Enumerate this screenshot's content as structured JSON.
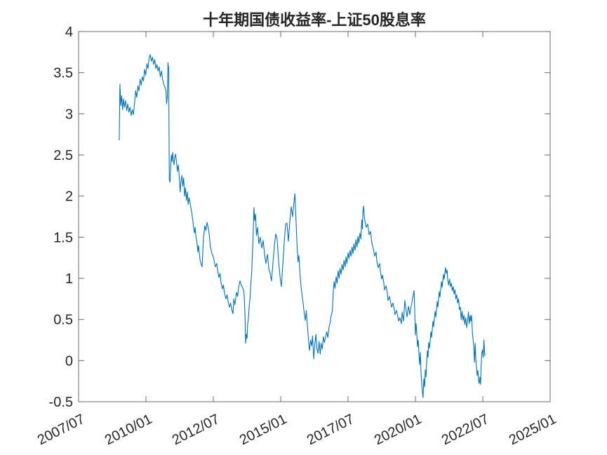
{
  "chart_data": {
    "type": "line",
    "title": "十年期国债收益率-上证50股息率",
    "legend": "none",
    "grid": false,
    "box": true,
    "tick_direction": "in",
    "colors": {
      "line": "#0072BD",
      "axis": "#6a6a6a",
      "text": "#262626",
      "background": "#ffffff"
    },
    "x_axis": {
      "unit": "months since 2007/07",
      "min": 0,
      "max": 210,
      "tick_values": [
        0,
        30,
        60,
        90,
        120,
        150,
        180,
        210
      ],
      "tick_labels": [
        "2007/07",
        "2010/01",
        "2012/07",
        "2015/01",
        "2017/07",
        "2020/01",
        "2022/07",
        "2025/01"
      ],
      "label_rotation_deg": -27
    },
    "y_axis": {
      "min": -0.5,
      "max": 4,
      "tick_values": [
        4,
        3.5,
        3,
        2.5,
        2,
        1.5,
        1,
        0.5,
        0,
        -0.5
      ],
      "tick_labels": [
        "4",
        "3.5",
        "3",
        "2.5",
        "2",
        "1.5",
        "1",
        "0.5",
        "0",
        "-0.5"
      ]
    },
    "points": [
      [
        18.1,
        2.68
      ],
      [
        18.4,
        3.36
      ],
      [
        18.8,
        3.1
      ],
      [
        19.2,
        3.22
      ],
      [
        19.6,
        3.05
      ],
      [
        20,
        3.18
      ],
      [
        20.4,
        3.08
      ],
      [
        20.9,
        3.16
      ],
      [
        21.4,
        3.04
      ],
      [
        21.9,
        3.12
      ],
      [
        22.4,
        3.02
      ],
      [
        22.9,
        3.08
      ],
      [
        23.4,
        2.98
      ],
      [
        23.9,
        3.05
      ],
      [
        24.4,
        2.99
      ],
      [
        25,
        3.15
      ],
      [
        25.4,
        3.28
      ],
      [
        25.9,
        3.2
      ],
      [
        26.4,
        3.34
      ],
      [
        26.9,
        3.28
      ],
      [
        27.4,
        3.42
      ],
      [
        27.9,
        3.35
      ],
      [
        28.4,
        3.45
      ],
      [
        28.9,
        3.4
      ],
      [
        29.4,
        3.54
      ],
      [
        29.9,
        3.47
      ],
      [
        30.4,
        3.61
      ],
      [
        30.9,
        3.55
      ],
      [
        31.4,
        3.68
      ],
      [
        31.9,
        3.72
      ],
      [
        32.4,
        3.64
      ],
      [
        32.9,
        3.69
      ],
      [
        33.4,
        3.6
      ],
      [
        33.9,
        3.66
      ],
      [
        34.4,
        3.55
      ],
      [
        34.9,
        3.6
      ],
      [
        35.4,
        3.52
      ],
      [
        35.9,
        3.57
      ],
      [
        36.4,
        3.45
      ],
      [
        36.9,
        3.52
      ],
      [
        37.4,
        3.42
      ],
      [
        37.9,
        3.36
      ],
      [
        38.4,
        3.33
      ],
      [
        38.9,
        3.28
      ],
      [
        39.2,
        3.12
      ],
      [
        39.5,
        3.2
      ],
      [
        39.8,
        3.62
      ],
      [
        40.1,
        3.55
      ],
      [
        40.4,
        2.2
      ],
      [
        40.7,
        2.17
      ],
      [
        41,
        2.35
      ],
      [
        41.3,
        2.5
      ],
      [
        41.6,
        2.42
      ],
      [
        41.9,
        2.53
      ],
      [
        42.2,
        2.45
      ],
      [
        42.5,
        2.38
      ],
      [
        42.9,
        2.48
      ],
      [
        43.2,
        2.51
      ],
      [
        43.6,
        2.42
      ],
      [
        44,
        2.3
      ],
      [
        44.4,
        2.38
      ],
      [
        44.8,
        2.25
      ],
      [
        45.2,
        2.05
      ],
      [
        45.6,
        2.18
      ],
      [
        46,
        2.25
      ],
      [
        46.4,
        2.12
      ],
      [
        46.8,
        2.22
      ],
      [
        47.2,
        2.0
      ],
      [
        47.6,
        2.1
      ],
      [
        48,
        1.95
      ],
      [
        48.4,
        2.05
      ],
      [
        48.8,
        1.9
      ],
      [
        49.2,
        1.98
      ],
      [
        49.6,
        1.92
      ],
      [
        50,
        1.86
      ],
      [
        50.4,
        1.8
      ],
      [
        50.8,
        1.72
      ],
      [
        51.2,
        1.62
      ],
      [
        51.6,
        1.55
      ],
      [
        51.9,
        1.62
      ],
      [
        52.3,
        1.5
      ],
      [
        52.7,
        1.44
      ],
      [
        53.1,
        1.32
      ],
      [
        53.4,
        1.4
      ],
      [
        53.8,
        1.3
      ],
      [
        54.1,
        1.22
      ],
      [
        54.5,
        1.18
      ],
      [
        55,
        1.14
      ],
      [
        55.6,
        1.49
      ],
      [
        56.2,
        1.64
      ],
      [
        56.7,
        1.58
      ],
      [
        57.2,
        1.68
      ],
      [
        57.7,
        1.62
      ],
      [
        58.1,
        1.55
      ],
      [
        58.7,
        1.38
      ],
      [
        59.4,
        1.3
      ],
      [
        60,
        1.26
      ],
      [
        60.3,
        1.22
      ],
      [
        60.9,
        1.14
      ],
      [
        61.5,
        1.18
      ],
      [
        61.9,
        1.1
      ],
      [
        62.5,
        1.01
      ],
      [
        63,
        1.06
      ],
      [
        63.4,
        0.95
      ],
      [
        64.1,
        0.87
      ],
      [
        64.5,
        0.92
      ],
      [
        65,
        0.82
      ],
      [
        65.6,
        0.75
      ],
      [
        66.1,
        0.8
      ],
      [
        66.6,
        0.72
      ],
      [
        67.2,
        0.65
      ],
      [
        67.7,
        0.7
      ],
      [
        68.1,
        0.63
      ],
      [
        68.75,
        0.57
      ],
      [
        69.1,
        0.75
      ],
      [
        69.6,
        0.68
      ],
      [
        70.3,
        0.83
      ],
      [
        70.8,
        0.78
      ],
      [
        71.25,
        0.89
      ],
      [
        71.9,
        0.97
      ],
      [
        72.4,
        0.92
      ],
      [
        72.8,
        0.9
      ],
      [
        73.4,
        0.86
      ],
      [
        73.75,
        0.79
      ],
      [
        74.1,
        0.55
      ],
      [
        74.4,
        0.21
      ],
      [
        74.7,
        0.32
      ],
      [
        75,
        0.27
      ],
      [
        75.3,
        0.45
      ],
      [
        75.6,
        0.5
      ],
      [
        75.9,
        0.63
      ],
      [
        76.3,
        0.75
      ],
      [
        76.6,
        0.89
      ],
      [
        76.9,
        1.0
      ],
      [
        77.2,
        1.14
      ],
      [
        77.5,
        1.35
      ],
      [
        77.8,
        1.6
      ],
      [
        78.1,
        1.86
      ],
      [
        78.4,
        1.7
      ],
      [
        78.8,
        1.78
      ],
      [
        79.2,
        1.52
      ],
      [
        79.7,
        1.62
      ],
      [
        80.3,
        1.42
      ],
      [
        80.9,
        1.5
      ],
      [
        81.6,
        1.37
      ],
      [
        82.2,
        1.46
      ],
      [
        82.8,
        1.3
      ],
      [
        83.4,
        1.18
      ],
      [
        84.1,
        1.29
      ],
      [
        84.7,
        1.12
      ],
      [
        85.3,
        1.06
      ],
      [
        85.9,
        0.97
      ],
      [
        86.6,
        1.2
      ],
      [
        87.2,
        1.4
      ],
      [
        87.8,
        1.54
      ],
      [
        88.4,
        1.48
      ],
      [
        89.1,
        1.2
      ],
      [
        89.7,
        1.02
      ],
      [
        90.3,
        0.9
      ],
      [
        90.9,
        1.15
      ],
      [
        91.6,
        1.45
      ],
      [
        92.2,
        1.66
      ],
      [
        92.8,
        1.67
      ],
      [
        93.4,
        1.45
      ],
      [
        94.1,
        1.7
      ],
      [
        94.7,
        1.87
      ],
      [
        95.3,
        1.75
      ],
      [
        95.9,
        1.92
      ],
      [
        96.3,
        2.03
      ],
      [
        96.8,
        1.72
      ],
      [
        97.2,
        1.45
      ],
      [
        97.7,
        1.2
      ],
      [
        98.1,
        1.28
      ],
      [
        98.6,
        1.05
      ],
      [
        99.1,
        0.89
      ],
      [
        99.5,
        0.8
      ],
      [
        100,
        0.7
      ],
      [
        100.5,
        0.57
      ],
      [
        101,
        0.49
      ],
      [
        101.4,
        0.61
      ],
      [
        101.9,
        0.42
      ],
      [
        102.4,
        0.25
      ],
      [
        102.8,
        0.12
      ],
      [
        103.3,
        0.25
      ],
      [
        103.8,
        0.18
      ],
      [
        104.2,
        0.3
      ],
      [
        104.7,
        0.02
      ],
      [
        105.2,
        0.2
      ],
      [
        105.7,
        0.32
      ],
      [
        106.1,
        0.15
      ],
      [
        106.6,
        0.09
      ],
      [
        107.1,
        0.23
      ],
      [
        107.6,
        0.08
      ],
      [
        108,
        0.21
      ],
      [
        108.5,
        0.14
      ],
      [
        109,
        0.29
      ],
      [
        109.5,
        0.22
      ],
      [
        110,
        0.29
      ],
      [
        110.5,
        0.35
      ],
      [
        111,
        0.28
      ],
      [
        111.5,
        0.4
      ],
      [
        112,
        0.46
      ],
      [
        112.5,
        0.55
      ],
      [
        113,
        0.6
      ],
      [
        113.4,
        0.83
      ],
      [
        113.8,
        0.96
      ],
      [
        114.2,
        0.88
      ],
      [
        114.7,
        1.02
      ],
      [
        115.1,
        0.94
      ],
      [
        115.6,
        1.09
      ],
      [
        116,
        1.0
      ],
      [
        116.4,
        1.12
      ],
      [
        116.9,
        1.05
      ],
      [
        117.3,
        1.17
      ],
      [
        117.8,
        1.1
      ],
      [
        118.2,
        1.22
      ],
      [
        118.7,
        1.14
      ],
      [
        119.1,
        1.26
      ],
      [
        119.5,
        1.18
      ],
      [
        120,
        1.31
      ],
      [
        120.4,
        1.24
      ],
      [
        120.9,
        1.34
      ],
      [
        121.3,
        1.27
      ],
      [
        121.8,
        1.38
      ],
      [
        122.2,
        1.3
      ],
      [
        122.6,
        1.42
      ],
      [
        123.1,
        1.34
      ],
      [
        123.5,
        1.47
      ],
      [
        124,
        1.38
      ],
      [
        124.4,
        1.51
      ],
      [
        124.8,
        1.43
      ],
      [
        125.3,
        1.55
      ],
      [
        125.7,
        1.48
      ],
      [
        126.1,
        1.71
      ],
      [
        126.4,
        1.6
      ],
      [
        126.6,
        1.8
      ],
      [
        126.9,
        1.88
      ],
      [
        127.2,
        1.76
      ],
      [
        127.5,
        1.7
      ],
      [
        128.1,
        1.62
      ],
      [
        128.75,
        1.66
      ],
      [
        129.4,
        1.53
      ],
      [
        130,
        1.57
      ],
      [
        130.6,
        1.43
      ],
      [
        131.25,
        1.36
      ],
      [
        131.9,
        1.27
      ],
      [
        132.5,
        1.32
      ],
      [
        132.8,
        1.21
      ],
      [
        133.4,
        1.13
      ],
      [
        134.1,
        1.18
      ],
      [
        134.4,
        1.08
      ],
      [
        135,
        0.99
      ],
      [
        135.3,
        1.04
      ],
      [
        135.9,
        0.95
      ],
      [
        136.25,
        0.86
      ],
      [
        136.9,
        0.91
      ],
      [
        137.5,
        0.82
      ],
      [
        137.8,
        0.73
      ],
      [
        138.4,
        0.78
      ],
      [
        139.1,
        0.69
      ],
      [
        139.4,
        0.65
      ],
      [
        140,
        0.7
      ],
      [
        140.6,
        0.62
      ],
      [
        140.9,
        0.56
      ],
      [
        141.6,
        0.61
      ],
      [
        142.2,
        0.53
      ],
      [
        142.5,
        0.48
      ],
      [
        143.1,
        0.52
      ],
      [
        143.75,
        0.45
      ],
      [
        144.1,
        0.59
      ],
      [
        144.7,
        0.48
      ],
      [
        145.3,
        0.73
      ],
      [
        145.9,
        0.6
      ],
      [
        146.25,
        0.53
      ],
      [
        146.9,
        0.66
      ],
      [
        147.5,
        0.56
      ],
      [
        147.8,
        0.62
      ],
      [
        148.4,
        0.7
      ],
      [
        148.75,
        0.76
      ],
      [
        149.4,
        0.85
      ],
      [
        149.7,
        0.6
      ],
      [
        150,
        0.31
      ],
      [
        150.3,
        0.45
      ],
      [
        150.6,
        0.34
      ],
      [
        150.9,
        0.17
      ],
      [
        151.25,
        0.25
      ],
      [
        151.6,
        0.06
      ],
      [
        151.9,
        -0.05
      ],
      [
        152.2,
        0.1
      ],
      [
        152.5,
        -0.15
      ],
      [
        152.8,
        -0.28
      ],
      [
        153.1,
        -0.38
      ],
      [
        153.4,
        -0.45
      ],
      [
        153.75,
        -0.22
      ],
      [
        154.1,
        -0.32
      ],
      [
        154.4,
        -0.11
      ],
      [
        154.7,
        -0.2
      ],
      [
        155,
        -0.02
      ],
      [
        155.3,
        0.12
      ],
      [
        155.6,
        0.04
      ],
      [
        155.9,
        0.22
      ],
      [
        156.25,
        0.15
      ],
      [
        156.9,
        0.35
      ],
      [
        157.2,
        0.28
      ],
      [
        157.8,
        0.48
      ],
      [
        158.1,
        0.41
      ],
      [
        158.75,
        0.6
      ],
      [
        159.1,
        0.53
      ],
      [
        159.7,
        0.72
      ],
      [
        160,
        0.65
      ],
      [
        160.6,
        0.84
      ],
      [
        160.9,
        0.77
      ],
      [
        161.6,
        0.96
      ],
      [
        161.9,
        0.89
      ],
      [
        162.5,
        1.05
      ],
      [
        162.8,
        0.99
      ],
      [
        163.4,
        1.13
      ],
      [
        163.75,
        1.06
      ],
      [
        164.1,
        1.1
      ],
      [
        164.4,
        0.98
      ],
      [
        164.8,
        0.92
      ],
      [
        165.2,
        0.99
      ],
      [
        165.6,
        0.9
      ],
      [
        166,
        0.94
      ],
      [
        166.4,
        0.85
      ],
      [
        166.8,
        0.9
      ],
      [
        167.2,
        0.81
      ],
      [
        167.6,
        0.86
      ],
      [
        168,
        0.75
      ],
      [
        168.4,
        0.8
      ],
      [
        168.8,
        0.7
      ],
      [
        169.2,
        0.75
      ],
      [
        169.6,
        0.62
      ],
      [
        170,
        0.65
      ],
      [
        170.4,
        0.5
      ],
      [
        170.8,
        0.6
      ],
      [
        171.2,
        0.49
      ],
      [
        171.6,
        0.55
      ],
      [
        172,
        0.44
      ],
      [
        172.4,
        0.52
      ],
      [
        172.8,
        0.4
      ],
      [
        173.2,
        0.47
      ],
      [
        173.6,
        0.59
      ],
      [
        174,
        0.45
      ],
      [
        174.4,
        0.55
      ],
      [
        174.7,
        0.48
      ],
      [
        175,
        0.55
      ],
      [
        175.4,
        0.33
      ],
      [
        175.7,
        0.25
      ],
      [
        176,
        0.16
      ],
      [
        176.3,
        -0.02
      ],
      [
        176.6,
        0.21
      ],
      [
        176.9,
        0.01
      ],
      [
        177.2,
        -0.08
      ],
      [
        177.5,
        -0.18
      ],
      [
        177.8,
        -0.12
      ],
      [
        178.1,
        -0.24
      ],
      [
        178.4,
        -0.28
      ],
      [
        178.7,
        -0.2
      ],
      [
        179,
        -0.29
      ],
      [
        179.3,
        -0.05
      ],
      [
        179.6,
        0.1
      ],
      [
        179.9,
        0.13
      ],
      [
        180.2,
        0.04
      ],
      [
        180.5,
        0.25
      ],
      [
        180.9,
        0.06
      ]
    ]
  }
}
